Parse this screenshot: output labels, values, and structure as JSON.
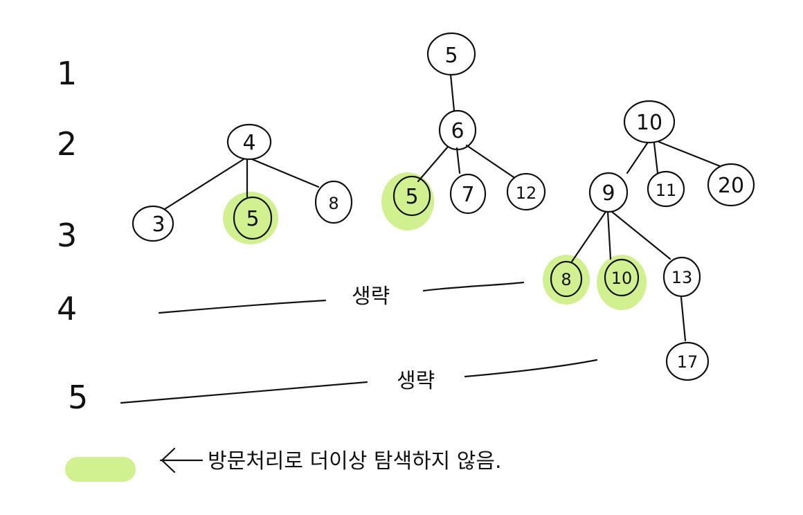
{
  "colors": {
    "highlight": "#c9ef7e",
    "ink": "#111111",
    "background": "#ffffff"
  },
  "levels": [
    "1",
    "2",
    "3",
    "4",
    "5"
  ],
  "trees": {
    "tree_a": {
      "root": "4",
      "children": [
        "3",
        "5",
        "8"
      ]
    },
    "tree_b": {
      "root": "5",
      "child": "6",
      "grandchildren": [
        "5",
        "7",
        "12"
      ]
    },
    "tree_c": {
      "root": "10",
      "children": [
        "9",
        "11",
        "20"
      ],
      "grandchildren": [
        "8",
        "10",
        "13"
      ],
      "great_grandchild": "17"
    }
  },
  "captions": {
    "omitted_level4": "생략",
    "omitted_level5": "생략"
  },
  "legend": {
    "text": "방문처리로 더이상 탐색하지 않음."
  }
}
